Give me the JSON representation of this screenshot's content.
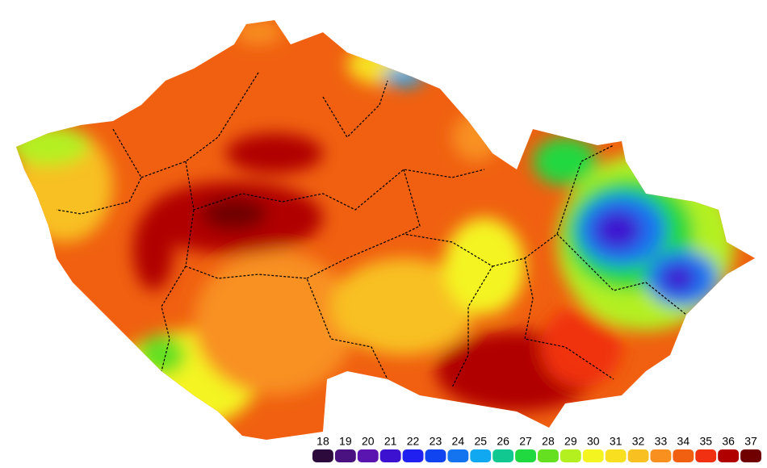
{
  "legend": {
    "values": [
      18,
      19,
      20,
      21,
      22,
      23,
      24,
      25,
      26,
      27,
      28,
      29,
      30,
      31,
      32,
      33,
      34,
      35,
      36,
      37
    ],
    "colors": [
      "#2c0a3c",
      "#4a1280",
      "#5a14b0",
      "#3c12d0",
      "#2020f0",
      "#1044f0",
      "#1474f0",
      "#10a8f0",
      "#10c890",
      "#20d840",
      "#64e020",
      "#b4f020",
      "#f4f420",
      "#f8e020",
      "#f8c020",
      "#f89020",
      "#f06010",
      "#f03010",
      "#b00000",
      "#700000"
    ]
  }
}
